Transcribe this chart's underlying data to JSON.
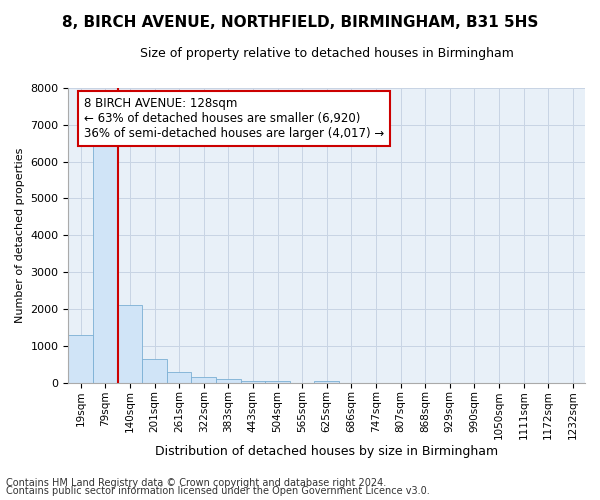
{
  "title": "8, BIRCH AVENUE, NORTHFIELD, BIRMINGHAM, B31 5HS",
  "subtitle": "Size of property relative to detached houses in Birmingham",
  "xlabel": "Distribution of detached houses by size in Birmingham",
  "ylabel": "Number of detached properties",
  "footnote1": "Contains HM Land Registry data © Crown copyright and database right 2024.",
  "footnote2": "Contains public sector information licensed under the Open Government Licence v3.0.",
  "categories": [
    "19sqm",
    "79sqm",
    "140sqm",
    "201sqm",
    "261sqm",
    "322sqm",
    "383sqm",
    "443sqm",
    "504sqm",
    "565sqm",
    "625sqm",
    "686sqm",
    "747sqm",
    "807sqm",
    "868sqm",
    "929sqm",
    "990sqm",
    "1050sqm",
    "1111sqm",
    "1172sqm",
    "1232sqm"
  ],
  "values": [
    1300,
    6600,
    2100,
    650,
    300,
    150,
    100,
    50,
    50,
    0,
    50,
    0,
    0,
    0,
    0,
    0,
    0,
    0,
    0,
    0,
    0
  ],
  "bar_color": "#d0e4f7",
  "bar_edge_color": "#7bafd4",
  "grid_color": "#c8d4e4",
  "background_color": "#e8f0f8",
  "fig_background": "#ffffff",
  "ylim": [
    0,
    8000
  ],
  "yticks": [
    0,
    1000,
    2000,
    3000,
    4000,
    5000,
    6000,
    7000,
    8000
  ],
  "redline_x": 2.0,
  "annotation_line1": "8 BIRCH AVENUE: 128sqm",
  "annotation_line2": "← 63% of detached houses are smaller (6,920)",
  "annotation_line3": "36% of semi-detached houses are larger (4,017) →",
  "redline_color": "#cc0000",
  "annotation_box_facecolor": "#ffffff",
  "annotation_box_edgecolor": "#cc0000",
  "title_fontsize": 11,
  "subtitle_fontsize": 9,
  "ylabel_fontsize": 8,
  "xlabel_fontsize": 9,
  "ytick_fontsize": 8,
  "xtick_fontsize": 7.5,
  "annotation_fontsize": 8.5,
  "footnote_fontsize": 7
}
